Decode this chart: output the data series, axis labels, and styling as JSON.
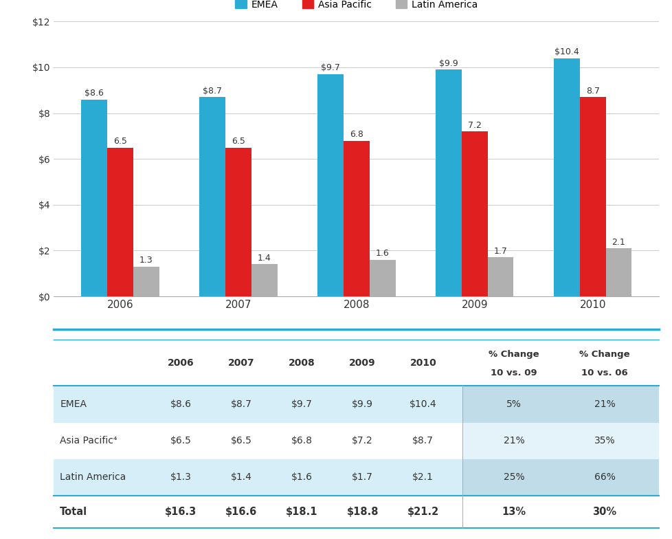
{
  "years": [
    "2006",
    "2007",
    "2008",
    "2009",
    "2010"
  ],
  "emea": [
    8.6,
    8.7,
    9.7,
    9.9,
    10.4
  ],
  "asia": [
    6.5,
    6.5,
    6.8,
    7.2,
    8.7
  ],
  "latin": [
    1.3,
    1.4,
    1.6,
    1.7,
    2.1
  ],
  "emea_color": "#29ABD4",
  "asia_color": "#E02020",
  "latin_color": "#B0B0B0",
  "ylim": [
    0,
    12
  ],
  "yticks": [
    0,
    2,
    4,
    6,
    8,
    10,
    12
  ],
  "ytick_labels": [
    "$0",
    "$2",
    "$4",
    "$6",
    "$8",
    "$10",
    "$12"
  ],
  "legend_labels": [
    "EMEA",
    "Asia Pacific",
    "Latin America"
  ],
  "bar_width": 0.22,
  "table_rows": [
    "EMEA",
    "Asia Pacific⁴",
    "Latin America",
    "Total"
  ],
  "table_data": [
    [
      "$8.6",
      "$8.7",
      "$9.7",
      "$9.9",
      "$10.4",
      "5%",
      "21%"
    ],
    [
      "$6.5",
      "$6.5",
      "$6.8",
      "$7.2",
      "$8.7",
      "21%",
      "35%"
    ],
    [
      "$1.3",
      "$1.4",
      "$1.6",
      "$1.7",
      "$2.1",
      "25%",
      "66%"
    ],
    [
      "$16.3",
      "$16.6",
      "$18.1",
      "$18.8",
      "$21.2",
      "13%",
      "30%"
    ]
  ],
  "teal_line_color": "#29ABD4",
  "row_bg_odd": "#D6EEF8",
  "row_bg_even": "#FFFFFF",
  "change_bg_odd": "#C0DCE8",
  "change_bg_even": "#E4F3F9"
}
